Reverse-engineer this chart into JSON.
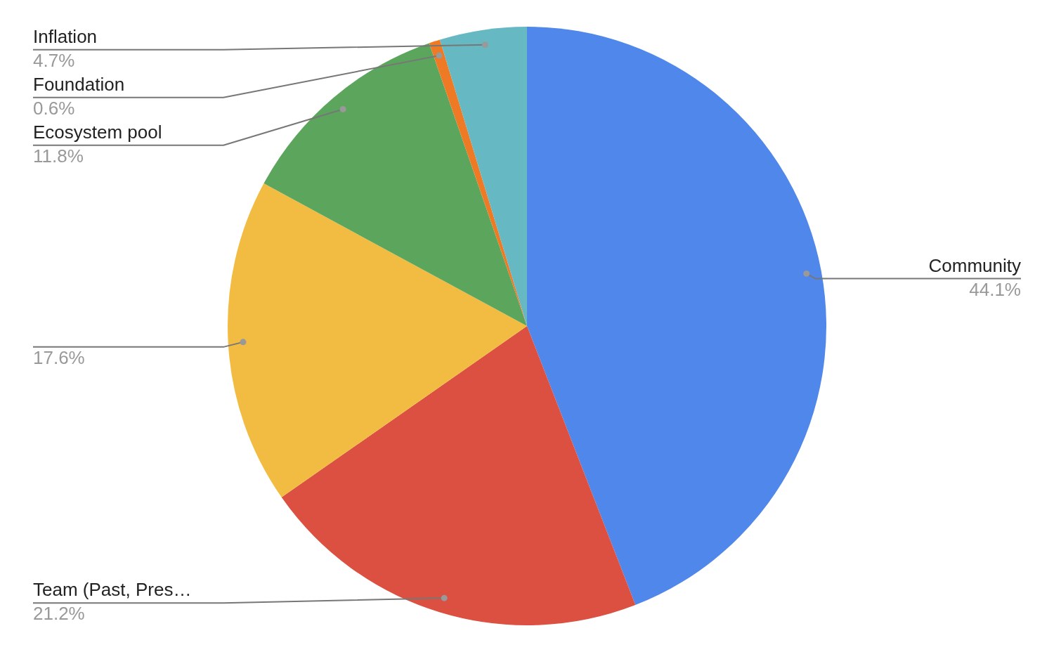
{
  "chart_data": {
    "type": "pie",
    "categories": [
      "Community",
      "Team (Past, Pres…",
      null,
      "Ecosystem pool",
      "Foundation",
      "Inflation"
    ],
    "values": [
      44.1,
      21.2,
      17.6,
      11.8,
      0.6,
      4.7
    ],
    "value_labels": [
      "44.1%",
      "21.2%",
      "17.6%",
      "11.8%",
      "0.6%",
      "4.7%"
    ],
    "colors": [
      "#4f87eb",
      "#db5040",
      "#f2bc42",
      "#5ba55c",
      "#ef7a25",
      "#66b8c2"
    ],
    "legend": false
  }
}
